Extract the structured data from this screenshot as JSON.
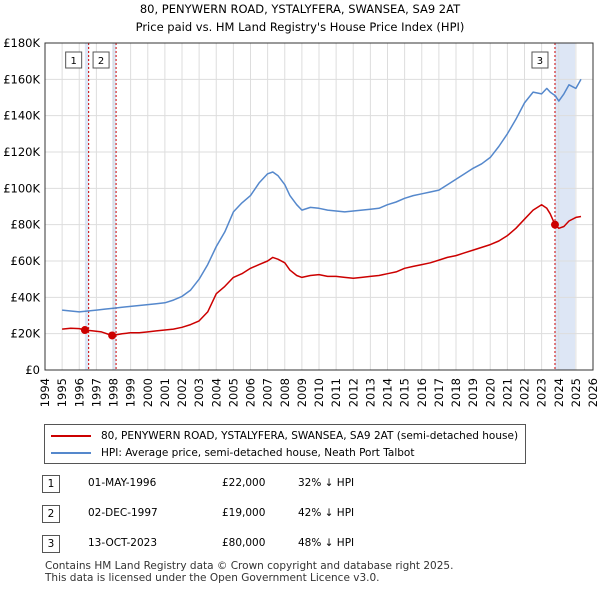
{
  "chart_data": {
    "type": "line",
    "title": "80, PENYWERN ROAD, YSTALYFERA, SWANSEA, SA9 2AT",
    "subtitle": "Price paid vs. HM Land Registry's House Price Index (HPI)",
    "xlabel": "",
    "ylabel": "",
    "xlim": [
      1994,
      2026
    ],
    "ylim": [
      0,
      180000
    ],
    "x_ticks": [
      1994,
      1995,
      1996,
      1997,
      1998,
      1999,
      2000,
      2001,
      2002,
      2003,
      2004,
      2005,
      2006,
      2007,
      2008,
      2009,
      2010,
      2011,
      2012,
      2013,
      2014,
      2015,
      2016,
      2017,
      2018,
      2019,
      2020,
      2021,
      2022,
      2023,
      2024,
      2025,
      2026
    ],
    "y_ticks": [
      0,
      20000,
      40000,
      60000,
      80000,
      100000,
      120000,
      140000,
      160000,
      180000
    ],
    "y_tick_labels": [
      "£0",
      "£20K",
      "£40K",
      "£60K",
      "£80K",
      "£100K",
      "£120K",
      "£140K",
      "£160K",
      "£180K"
    ],
    "grid": true,
    "sale_periods": [
      {
        "label": "1",
        "start": 1996.33,
        "end": 1996.55
      },
      {
        "label": "2",
        "start": 1997.92,
        "end": 1998.15
      },
      {
        "label": "3",
        "start": 2023.78,
        "end": 2024.95
      }
    ],
    "series": [
      {
        "name": "80, PENYWERN ROAD, YSTALYFERA, SWANSEA, SA9 2AT (semi-detached house)",
        "color": "#cc0000",
        "x": [
          1995,
          1995.5,
          1996,
          1996.33,
          1996.8,
          1997.3,
          1997.92,
          1998.5,
          1999,
          1999.5,
          2000,
          2000.5,
          2001,
          2001.5,
          2002,
          2002.5,
          2003,
          2003.5,
          2004,
          2004.5,
          2005,
          2005.5,
          2006,
          2006.5,
          2007,
          2007.3,
          2007.6,
          2008,
          2008.3,
          2008.7,
          2009,
          2009.5,
          2010,
          2010.5,
          2011,
          2011.5,
          2012,
          2012.5,
          2013,
          2013.5,
          2014,
          2014.5,
          2015,
          2015.5,
          2016,
          2016.5,
          2017,
          2017.5,
          2018,
          2018.5,
          2019,
          2019.5,
          2020,
          2020.5,
          2021,
          2021.5,
          2022,
          2022.5,
          2023,
          2023.3,
          2023.5,
          2023.78,
          2024,
          2024.3,
          2024.6,
          2025,
          2025.3
        ],
        "values": [
          22500,
          23000,
          22800,
          22000,
          21500,
          21000,
          19000,
          20000,
          20500,
          20500,
          21000,
          21500,
          22000,
          22500,
          23500,
          25000,
          27000,
          32000,
          42000,
          46000,
          51000,
          53000,
          56000,
          58000,
          60000,
          62000,
          61000,
          59000,
          55000,
          52000,
          51000,
          52000,
          52500,
          51500,
          51500,
          51000,
          50500,
          51000,
          51500,
          52000,
          53000,
          54000,
          56000,
          57000,
          58000,
          59000,
          60500,
          62000,
          63000,
          64500,
          66000,
          67500,
          69000,
          71000,
          74000,
          78000,
          83000,
          88000,
          91000,
          89000,
          86000,
          80000,
          78000,
          79000,
          82000,
          84000,
          84500
        ]
      },
      {
        "name": "HPI: Average price, semi-detached house, Neath Port Talbot",
        "color": "#5588cc",
        "x": [
          1995,
          1995.5,
          1996,
          1996.5,
          1997,
          1997.5,
          1998,
          1998.5,
          1999,
          1999.5,
          2000,
          2000.5,
          2001,
          2001.5,
          2002,
          2002.5,
          2003,
          2003.5,
          2004,
          2004.5,
          2005,
          2005.5,
          2006,
          2006.5,
          2007,
          2007.3,
          2007.6,
          2008,
          2008.3,
          2008.7,
          2009,
          2009.5,
          2010,
          2010.5,
          2011,
          2011.5,
          2012,
          2012.5,
          2013,
          2013.5,
          2014,
          2014.5,
          2015,
          2015.5,
          2016,
          2016.5,
          2017,
          2017.5,
          2018,
          2018.5,
          2019,
          2019.5,
          2020,
          2020.5,
          2021,
          2021.5,
          2022,
          2022.5,
          2023,
          2023.3,
          2023.5,
          2023.8,
          2024,
          2024.3,
          2024.6,
          2025,
          2025.3
        ],
        "values": [
          33000,
          32500,
          32000,
          32500,
          33000,
          33500,
          34000,
          34500,
          35000,
          35500,
          36000,
          36500,
          37000,
          38500,
          40500,
          44000,
          50000,
          58000,
          68000,
          76000,
          87000,
          92000,
          96000,
          103000,
          108000,
          109000,
          107000,
          102000,
          96000,
          91000,
          88000,
          89500,
          89000,
          88000,
          87500,
          87000,
          87500,
          88000,
          88500,
          89000,
          91000,
          92500,
          94500,
          96000,
          97000,
          98000,
          99000,
          102000,
          105000,
          108000,
          111000,
          113500,
          117000,
          123000,
          130000,
          138000,
          147000,
          153000,
          152000,
          155000,
          153000,
          151000,
          148000,
          152000,
          157000,
          155000,
          160000
        ]
      }
    ],
    "sale_markers": [
      {
        "x": 1996.33,
        "y": 22000
      },
      {
        "x": 1997.92,
        "y": 19000
      },
      {
        "x": 2023.78,
        "y": 80000
      }
    ]
  },
  "legend": {
    "property_label": "80, PENYWERN ROAD, YSTALYFERA, SWANSEA, SA9 2AT (semi-detached house)",
    "hpi_label": "HPI: Average price, semi-detached house, Neath Port Talbot",
    "property_color": "#cc0000",
    "hpi_color": "#5588cc"
  },
  "sales": [
    {
      "num": "1",
      "date": "01-MAY-1996",
      "price": "£22,000",
      "hpi": "32% ↓ HPI"
    },
    {
      "num": "2",
      "date": "02-DEC-1997",
      "price": "£19,000",
      "hpi": "42% ↓ HPI"
    },
    {
      "num": "3",
      "date": "13-OCT-2023",
      "price": "£80,000",
      "hpi": "48% ↓ HPI"
    }
  ],
  "footer": {
    "line1": "Contains HM Land Registry data © Crown copyright and database right 2025.",
    "line2": "This data is licensed under the Open Government Licence v3.0."
  }
}
